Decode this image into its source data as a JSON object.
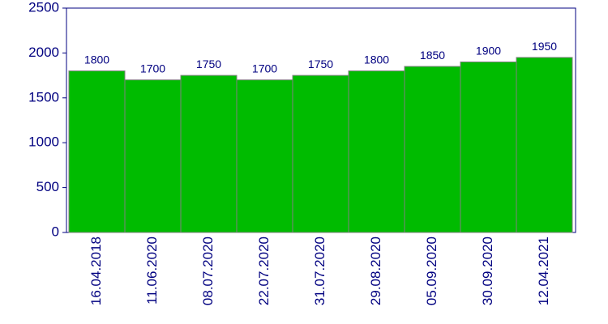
{
  "chart_data": {
    "type": "bar",
    "categories": [
      "16.04.2018",
      "11.06.2020",
      "08.07.2020",
      "22.07.2020",
      "31.07.2020",
      "29.08.2020",
      "05.09.2020",
      "30.09.2020",
      "12.04.2021"
    ],
    "values": [
      1800,
      1700,
      1750,
      1700,
      1750,
      1800,
      1850,
      1900,
      1950
    ],
    "color": "#00bb00",
    "ylim": [
      0,
      2500
    ],
    "yticks": [
      0,
      500,
      1000,
      1500,
      2000,
      2500
    ]
  }
}
